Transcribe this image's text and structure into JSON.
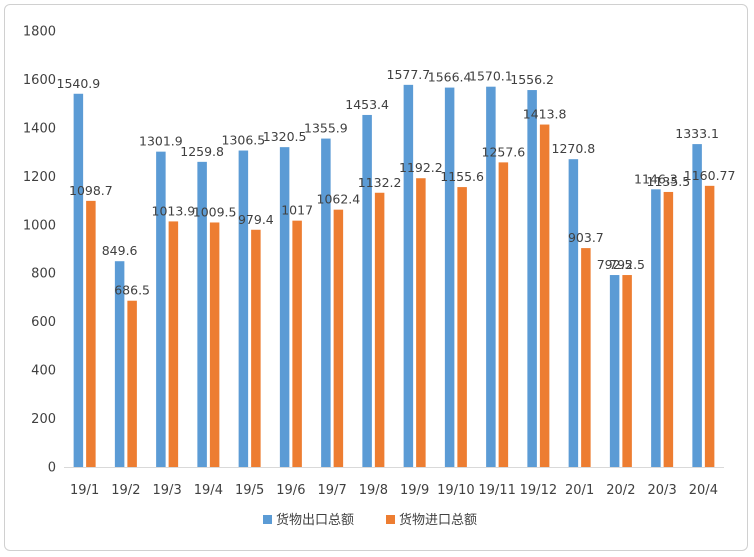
{
  "chart_data": {
    "type": "bar",
    "categories": [
      "19/1",
      "19/2",
      "19/3",
      "19/4",
      "19/5",
      "19/6",
      "19/7",
      "19/8",
      "19/9",
      "19/10",
      "19/11",
      "19/12",
      "20/1",
      "20/2",
      "20/3",
      "20/4"
    ],
    "series": [
      {
        "name": "货物出口总额",
        "color": "#5b9bd5",
        "values": [
          1540.9,
          849.6,
          1301.9,
          1259.8,
          1306.5,
          1320.5,
          1355.9,
          1453.4,
          1577.7,
          1566.4,
          1570.1,
          1556.2,
          1270.8,
          792.5,
          1146.3,
          1333.1
        ],
        "labels": [
          "1540.9",
          "849.6",
          "1301.9",
          "1259.8",
          "1306.5",
          "1320.5",
          "1355.9",
          "1453.4",
          "1577.7",
          "1566.4",
          "1570.1",
          "1556.2",
          "1270.8",
          "792.5",
          "1146.3",
          "1333.1"
        ]
      },
      {
        "name": "货物进口总额",
        "color": "#ed7d31",
        "values": [
          1098.7,
          686.5,
          1013.9,
          1009.5,
          979.4,
          1017,
          1062.4,
          1132.2,
          1192.2,
          1155.6,
          1257.6,
          1413.8,
          903.7,
          792.5,
          1135.5,
          1160.77
        ],
        "labels": [
          "1098.7",
          "686.5",
          "1013.9",
          "1009.5",
          "979.4",
          "1017",
          "1062.4",
          "1132.2",
          "1192.2",
          "1155.6",
          "1257.6",
          "1413.8",
          "903.7",
          "792.5",
          "1135.5",
          "1160.77"
        ]
      }
    ],
    "ylim": [
      0,
      1800
    ],
    "yticks": [
      "0",
      "200",
      "400",
      "600",
      "800",
      "1000",
      "1200",
      "1400",
      "1600",
      "1800"
    ],
    "grid": false,
    "legend_position": "bottom"
  }
}
